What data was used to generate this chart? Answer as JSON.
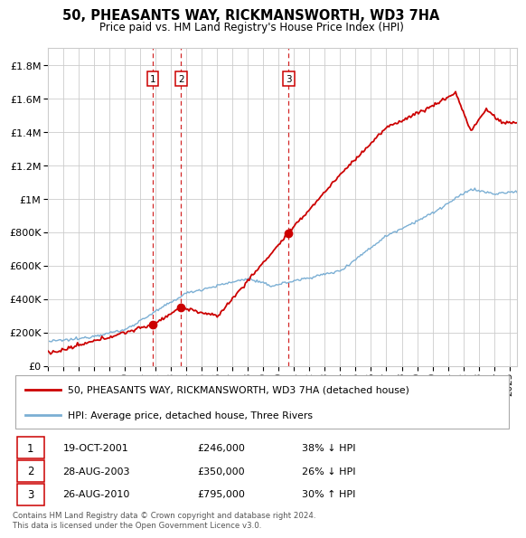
{
  "title": "50, PHEASANTS WAY, RICKMANSWORTH, WD3 7HA",
  "subtitle": "Price paid vs. HM Land Registry's House Price Index (HPI)",
  "ylabel_ticks": [
    "£0",
    "£200K",
    "£400K",
    "£600K",
    "£800K",
    "£1M",
    "£1.2M",
    "£1.4M",
    "£1.6M",
    "£1.8M"
  ],
  "ytick_values": [
    0,
    200000,
    400000,
    600000,
    800000,
    1000000,
    1200000,
    1400000,
    1600000,
    1800000
  ],
  "ylim": [
    0,
    1900000
  ],
  "xlim_start": 1995.0,
  "xlim_end": 2025.5,
  "sale_dates": [
    2001.8,
    2003.65,
    2010.65
  ],
  "sale_prices": [
    246000,
    350000,
    795000
  ],
  "sale_labels": [
    "1",
    "2",
    "3"
  ],
  "red_line_color": "#cc0000",
  "blue_line_color": "#7bafd4",
  "vline_color": "#cc0000",
  "marker_color": "#cc0000",
  "legend_entries": [
    "50, PHEASANTS WAY, RICKMANSWORTH, WD3 7HA (detached house)",
    "HPI: Average price, detached house, Three Rivers"
  ],
  "table_rows": [
    [
      "1",
      "19-OCT-2001",
      "£246,000",
      "38% ↓ HPI"
    ],
    [
      "2",
      "28-AUG-2003",
      "£350,000",
      "26% ↓ HPI"
    ],
    [
      "3",
      "26-AUG-2010",
      "£795,000",
      "30% ↑ HPI"
    ]
  ],
  "footnote": "Contains HM Land Registry data © Crown copyright and database right 2024.\nThis data is licensed under the Open Government Licence v3.0.",
  "background_color": "#ffffff",
  "grid_color": "#cccccc"
}
